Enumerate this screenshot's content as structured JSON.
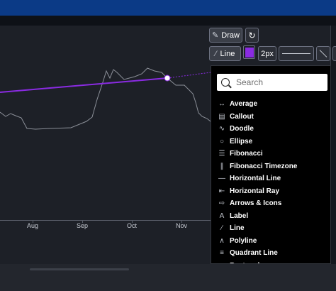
{
  "chart": {
    "x_ticks": [
      "Aug",
      "Sep",
      "Oct",
      "Nov"
    ]
  },
  "toolbar": {
    "draw_label": "Draw",
    "tool_label": "Line",
    "color": "#8a2be2",
    "width_label": "2px"
  },
  "menu": {
    "search_placeholder": "Search",
    "items": [
      {
        "label": "Average",
        "icon": "average-icon",
        "glyph": "↔"
      },
      {
        "label": "Callout",
        "icon": "callout-icon",
        "glyph": "▤"
      },
      {
        "label": "Doodle",
        "icon": "doodle-icon",
        "glyph": "∿"
      },
      {
        "label": "Ellipse",
        "icon": "ellipse-icon",
        "glyph": "○"
      },
      {
        "label": "Fibonacci",
        "icon": "fibonacci-icon",
        "glyph": "☰"
      },
      {
        "label": "Fibonacci Timezone",
        "icon": "fibonacci-timezone-icon",
        "glyph": "∥"
      },
      {
        "label": "Horizontal Line",
        "icon": "horizontal-line-icon",
        "glyph": "—"
      },
      {
        "label": "Horizontal Ray",
        "icon": "horizontal-ray-icon",
        "glyph": "⇤"
      },
      {
        "label": "Arrows & Icons",
        "icon": "arrow-icon",
        "glyph": "⇨"
      },
      {
        "label": "Label",
        "icon": "label-icon",
        "glyph": "A"
      },
      {
        "label": "Line",
        "icon": "line-icon",
        "glyph": "∕"
      },
      {
        "label": "Polyline",
        "icon": "polyline-icon",
        "glyph": "∧"
      },
      {
        "label": "Quadrant Line",
        "icon": "quadrant-line-icon",
        "glyph": "≡"
      },
      {
        "label": "Rectangle",
        "icon": "rectangle-icon",
        "glyph": "▭"
      }
    ]
  }
}
